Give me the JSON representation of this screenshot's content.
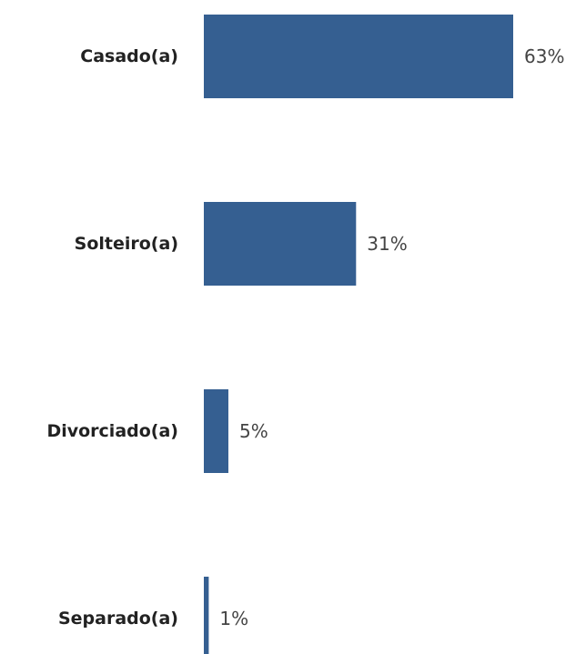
{
  "chart_data": {
    "type": "bar",
    "orientation": "horizontal",
    "categories": [
      "Casado(a)",
      "Solteiro(a)",
      "Divorciado(a)",
      "Separado(a)"
    ],
    "values": [
      63,
      31,
      5,
      1
    ],
    "value_labels": [
      "63%",
      "31%",
      "5%",
      "1%"
    ],
    "unit": "%",
    "title": "",
    "xlabel": "",
    "ylabel": "",
    "xlim": [
      0,
      63
    ],
    "grid": false,
    "legend": "none",
    "colors": {
      "bar": "#355f91",
      "category_label": "#222222",
      "value_label": "#444444"
    }
  }
}
